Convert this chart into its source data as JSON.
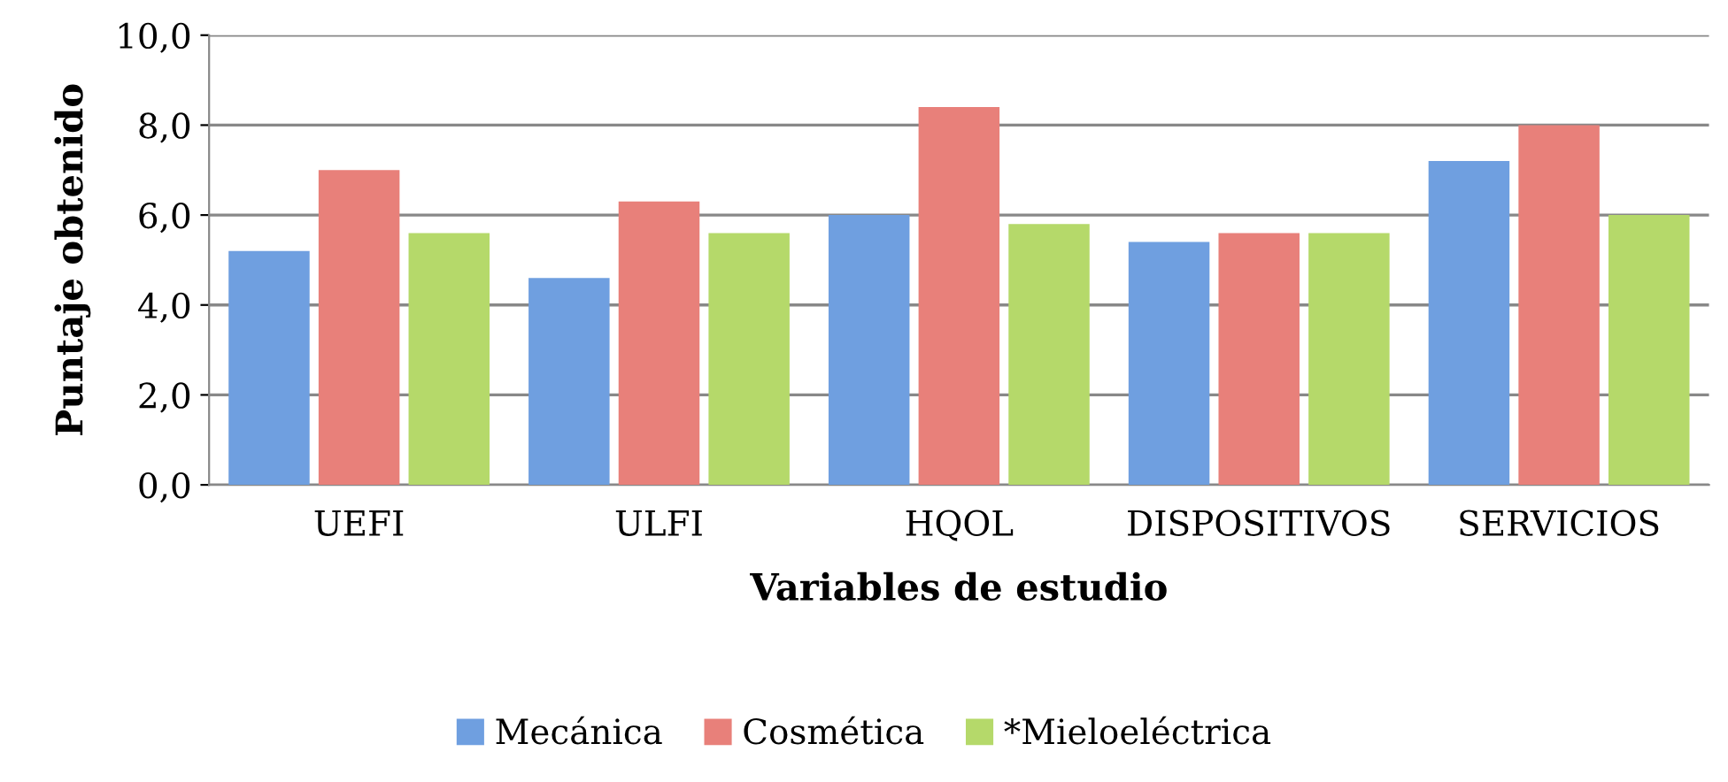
{
  "chart_data": {
    "type": "bar",
    "xlabel": "Variables de estudio",
    "ylabel": "Puntaje obtenido",
    "categories": [
      "UEFI",
      "ULFI",
      "HQOL",
      "DISPOSITIVOS",
      "SERVICIOS"
    ],
    "series": [
      {
        "name": "Mecánica",
        "color": "#6f9fe0",
        "values": [
          5.2,
          4.6,
          6.0,
          5.4,
          7.2
        ]
      },
      {
        "name": "Cosmética",
        "color": "#e8807a",
        "values": [
          7.0,
          6.3,
          8.4,
          5.6,
          8.0
        ]
      },
      {
        "name": "*Mieloeléctrica",
        "color": "#b5d96a",
        "values": [
          5.6,
          5.6,
          5.8,
          5.6,
          6.0
        ]
      }
    ],
    "ylim": [
      0,
      10
    ],
    "yticks": [
      {
        "value": 0,
        "label": "0,0"
      },
      {
        "value": 2,
        "label": "2,0"
      },
      {
        "value": 4,
        "label": "4,0"
      },
      {
        "value": 6,
        "label": "6,0"
      },
      {
        "value": 8,
        "label": "8,0"
      },
      {
        "value": 10,
        "label": "10,0"
      }
    ],
    "grid": "y",
    "legend": "bottom"
  }
}
